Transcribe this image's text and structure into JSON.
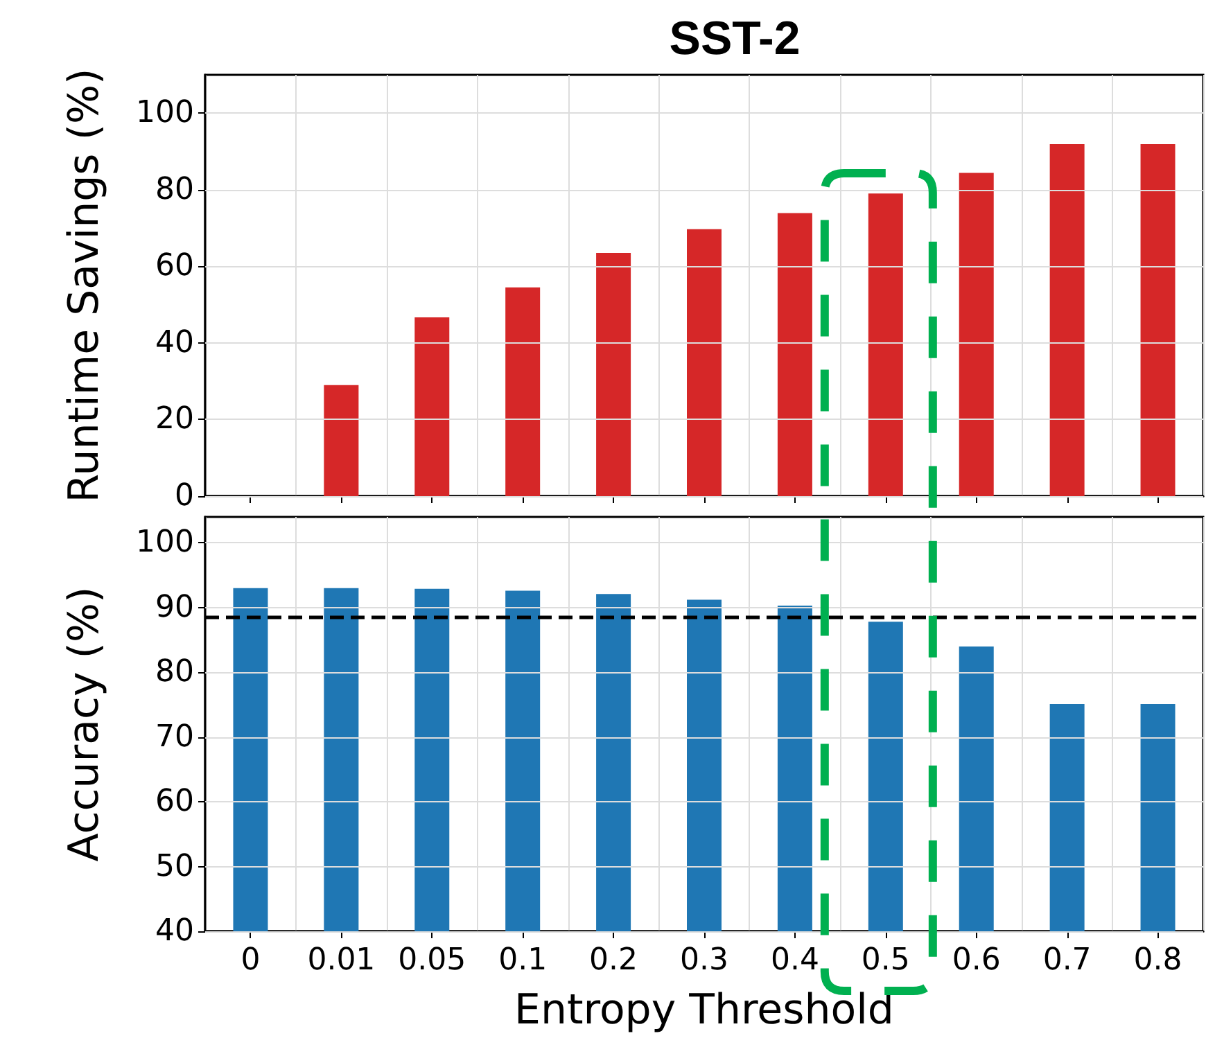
{
  "chart_data": [
    {
      "type": "bar",
      "title": "SST-2",
      "ylabel": "Runtime Savings (%)",
      "categories": [
        "0",
        "0.01",
        "0.05",
        "0.1",
        "0.2",
        "0.3",
        "0.4",
        "0.5",
        "0.6",
        "0.7",
        "0.8"
      ],
      "values": [
        0,
        29,
        46.7,
        54.5,
        63.5,
        69.7,
        73.9,
        79.0,
        84.4,
        91.9,
        91.9
      ],
      "color": "#d62728",
      "ylim": [
        0,
        110
      ],
      "yticks": [
        0,
        20,
        40,
        60,
        80,
        100
      ],
      "grid": true,
      "tick_labels": "y"
    },
    {
      "type": "bar",
      "xlabel": "Entropy Threshold",
      "ylabel": "Accuracy (%)",
      "categories": [
        "0",
        "0.01",
        "0.05",
        "0.1",
        "0.2",
        "0.3",
        "0.4",
        "0.5",
        "0.6",
        "0.7",
        "0.8"
      ],
      "values": [
        93.0,
        93.0,
        92.9,
        92.6,
        92.1,
        91.2,
        90.3,
        87.8,
        84.0,
        75.1,
        75.1
      ],
      "color": "#1f77b4",
      "ylim": [
        40,
        104
      ],
      "yticks": [
        40,
        50,
        60,
        70,
        80,
        90,
        100
      ],
      "grid": true,
      "ref_lines": [
        {
          "axis": "y",
          "value": 88.6,
          "color": "#000000",
          "line_style": "dashed"
        }
      ]
    }
  ]
}
